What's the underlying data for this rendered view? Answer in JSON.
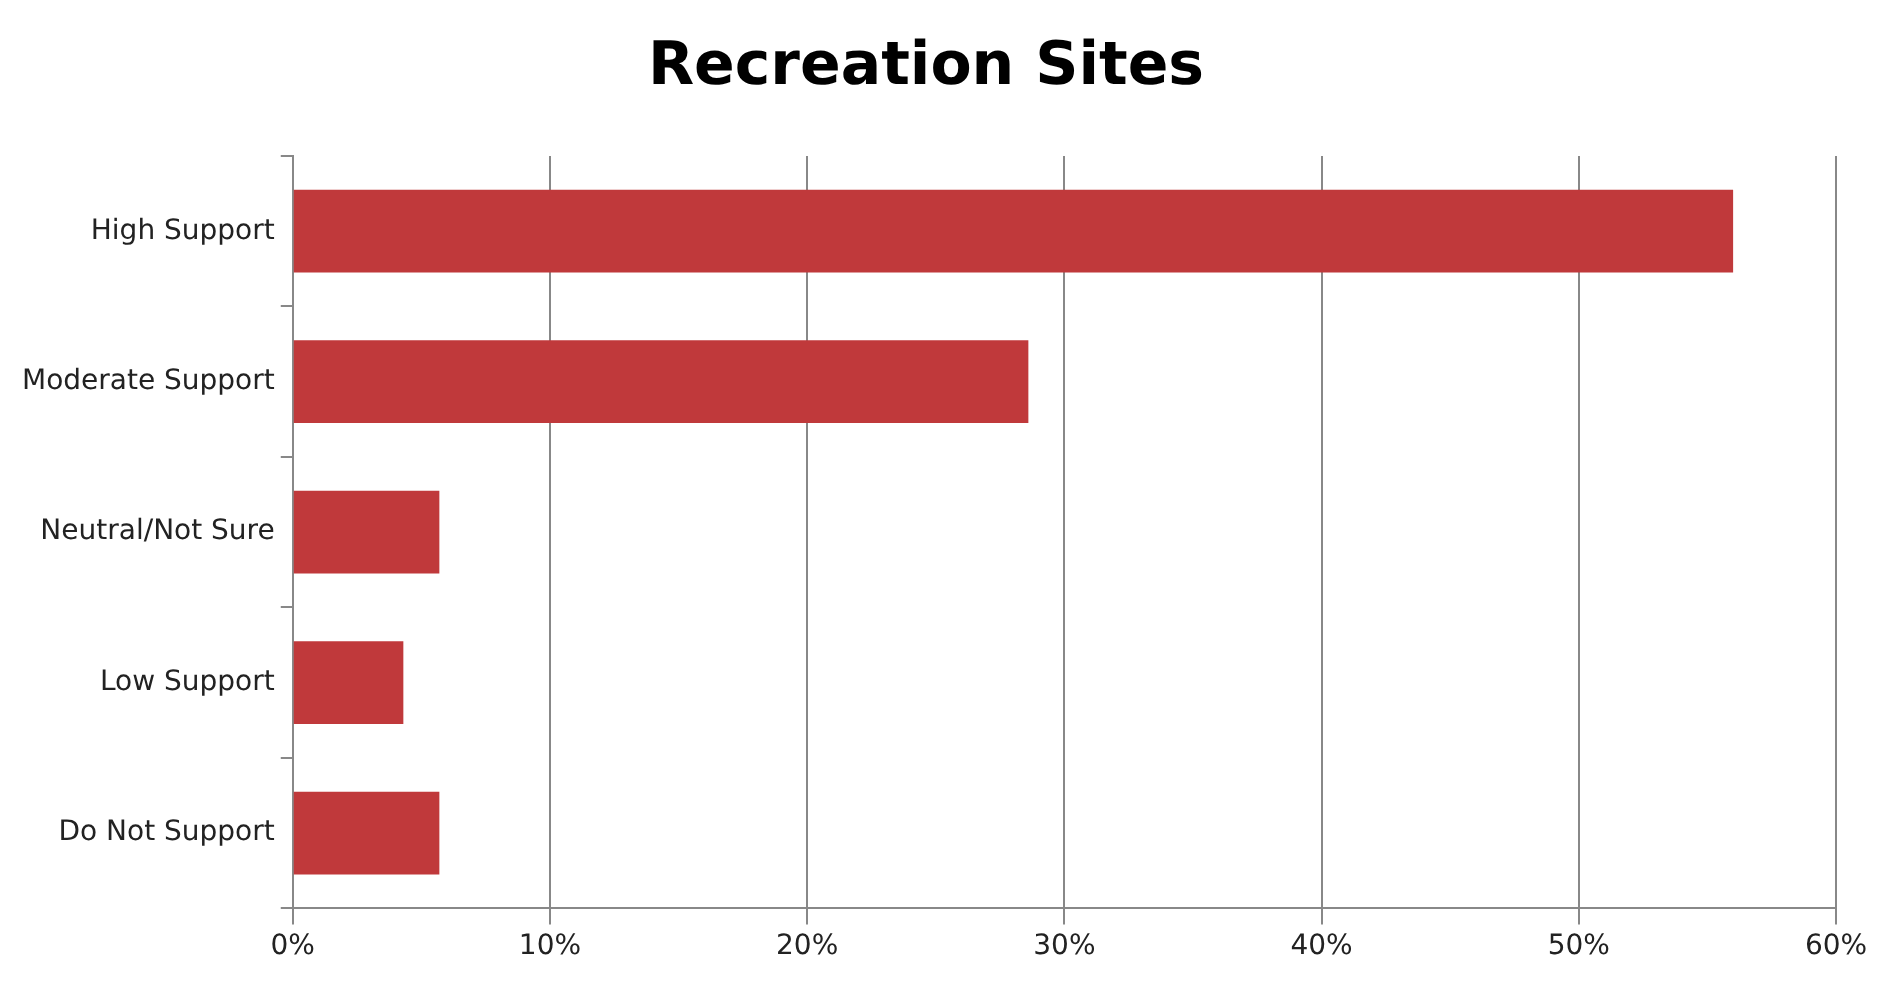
{
  "chart_data": {
    "type": "bar",
    "title": "Recreation Sites",
    "orientation": "horizontal",
    "categories": [
      "High Support",
      "Moderate Support",
      "Neutral/Not Sure",
      "Low Support",
      "Do Not Support"
    ],
    "values": [
      56,
      28.6,
      5.7,
      4.3,
      5.7
    ],
    "color": "#c0393b",
    "xlim": [
      0,
      60
    ],
    "xticks": [
      {
        "value": 0,
        "label": "0%"
      },
      {
        "value": 10,
        "label": "10%"
      },
      {
        "value": 20,
        "label": "20%"
      },
      {
        "value": 30,
        "label": "30%"
      },
      {
        "value": 40,
        "label": "40%"
      },
      {
        "value": 50,
        "label": "50%"
      },
      {
        "value": 60,
        "label": "60%"
      }
    ],
    "grid": "x"
  }
}
